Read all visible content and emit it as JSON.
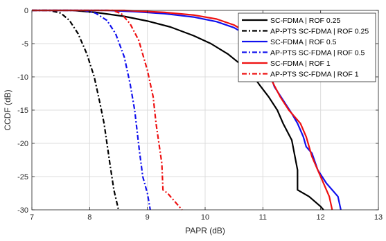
{
  "chart_data": {
    "type": "line",
    "title": "",
    "xlabel": "PAPR (dB)",
    "ylabel": "CCDF (dB)",
    "xlim": [
      7,
      13
    ],
    "ylim": [
      -30,
      0
    ],
    "xticks": [
      7,
      8,
      9,
      10,
      11,
      12,
      13
    ],
    "yticks": [
      0,
      -5,
      -10,
      -15,
      -20,
      -25,
      -30
    ],
    "grid": true,
    "legend_position": "top-right",
    "series": [
      {
        "name": "SC-FDMA | ROF 0.25",
        "color": "#000000",
        "dash": "solid",
        "x": [
          7.0,
          7.7,
          8.1,
          8.6,
          9.0,
          9.4,
          9.8,
          10.1,
          10.4,
          10.6,
          10.8,
          10.95,
          11.1,
          11.25,
          11.35,
          11.5,
          11.6,
          11.6,
          11.8,
          12.0,
          12.05
        ],
        "y": [
          0,
          0,
          -0.3,
          -0.9,
          -1.6,
          -2.5,
          -3.8,
          -5.0,
          -6.6,
          -8.0,
          -9.5,
          -11.3,
          -13.0,
          -15.0,
          -17.0,
          -19.5,
          -24.0,
          -27.0,
          -28.0,
          -29.5,
          -30.0
        ]
      },
      {
        "name": "AP-PTS SC-FDMA | ROF 0.25",
        "color": "#000000",
        "dash": "dashdot",
        "x": [
          7.0,
          7.3,
          7.5,
          7.65,
          7.8,
          7.95,
          8.08,
          8.18,
          8.25,
          8.3,
          8.35,
          8.42,
          8.5
        ],
        "y": [
          0,
          0,
          -0.4,
          -1.5,
          -3.5,
          -6.5,
          -10.0,
          -14.0,
          -17.0,
          -20.0,
          -23.0,
          -27.0,
          -30.0
        ]
      },
      {
        "name": "SC-FDMA | ROF 0.5",
        "color": "#1010ee",
        "dash": "solid",
        "x": [
          7.0,
          8.3,
          8.8,
          9.3,
          9.8,
          10.2,
          10.5,
          10.7,
          10.85,
          11.0,
          11.1,
          11.2,
          11.35,
          11.5,
          11.6,
          11.7,
          11.75,
          11.85,
          11.95,
          12.1,
          12.3,
          12.35
        ],
        "y": [
          0,
          0,
          -0.2,
          -0.5,
          -1.0,
          -1.7,
          -2.6,
          -3.6,
          -5.0,
          -7.0,
          -9.0,
          -11.5,
          -13.5,
          -15.5,
          -17.0,
          -19.0,
          -20.5,
          -21.5,
          -24.0,
          -26.0,
          -28.0,
          -30.0
        ]
      },
      {
        "name": "AP-PTS SC-FDMA | ROF 0.5",
        "color": "#1010ee",
        "dash": "dashdot",
        "x": [
          7.0,
          7.9,
          8.1,
          8.3,
          8.45,
          8.6,
          8.7,
          8.78,
          8.82,
          8.86,
          8.92,
          9.0,
          9.05
        ],
        "y": [
          0,
          0,
          -0.4,
          -1.5,
          -3.5,
          -7.0,
          -11.0,
          -15.0,
          -18.0,
          -21.0,
          -25.0,
          -27.5,
          -30.0
        ]
      },
      {
        "name": "SC-FDMA | ROF 1",
        "color": "#ee1010",
        "dash": "solid",
        "x": [
          7.0,
          8.6,
          9.3,
          9.8,
          10.2,
          10.5,
          10.7,
          10.85,
          10.95,
          11.05,
          11.15,
          11.3,
          11.45,
          11.55,
          11.65,
          11.75,
          11.85,
          11.95,
          12.05,
          12.15,
          12.2
        ],
        "y": [
          0,
          0,
          -0.3,
          -0.7,
          -1.3,
          -2.2,
          -3.2,
          -4.5,
          -6.0,
          -8.0,
          -10.5,
          -13.0,
          -15.0,
          -16.0,
          -17.0,
          -19.0,
          -22.0,
          -24.0,
          -26.0,
          -28.0,
          -30.0
        ]
      },
      {
        "name": "AP-PTS SC-FDMA | ROF 1",
        "color": "#ee1010",
        "dash": "dashdot",
        "x": [
          7.0,
          8.4,
          8.55,
          8.7,
          8.85,
          9.0,
          9.1,
          9.15,
          9.2,
          9.25,
          9.27,
          9.35,
          9.45,
          9.55,
          9.6
        ],
        "y": [
          0,
          0,
          -0.5,
          -2.0,
          -4.5,
          -9.0,
          -13.0,
          -17.0,
          -20.0,
          -23.0,
          -27.0,
          -27.5,
          -28.5,
          -29.5,
          -30.0
        ]
      }
    ]
  }
}
